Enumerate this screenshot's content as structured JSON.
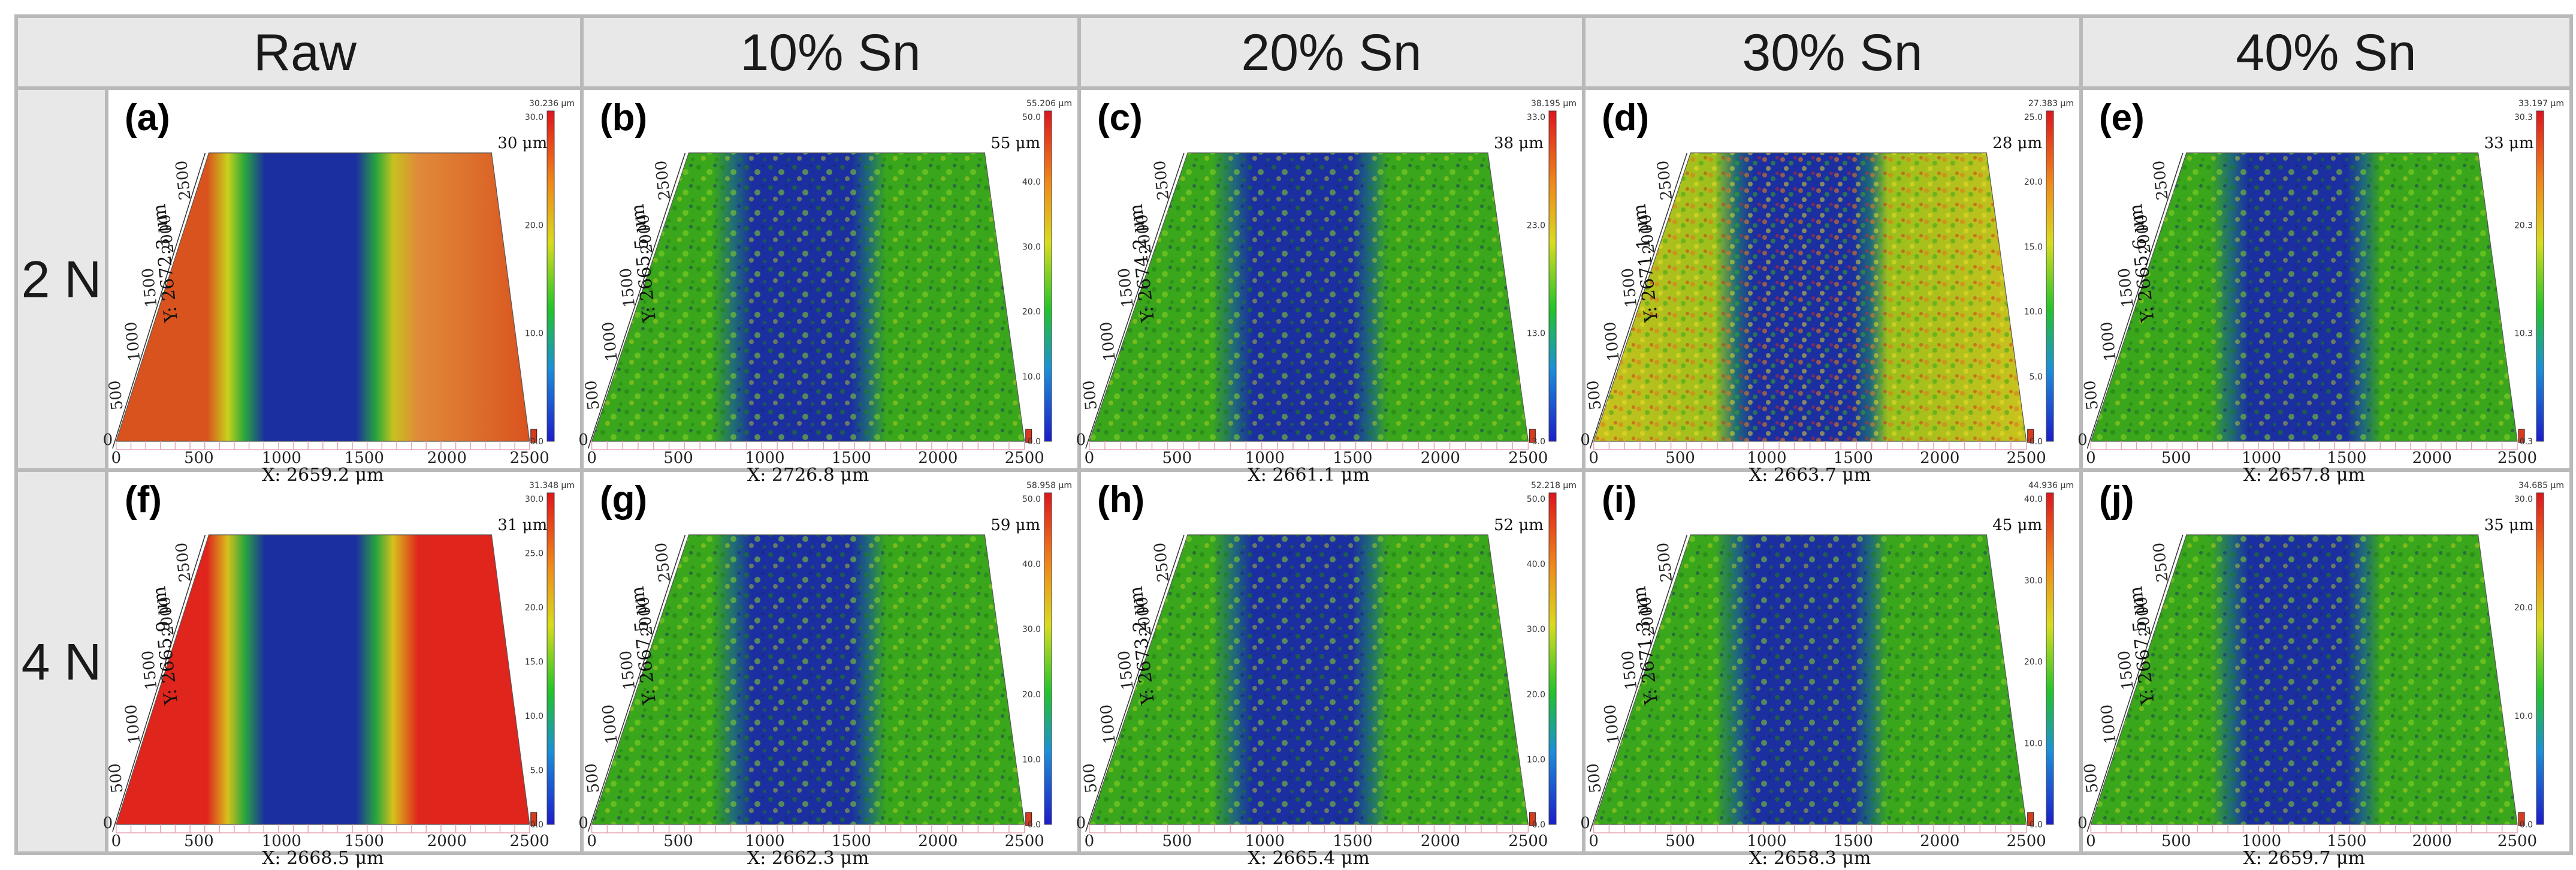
{
  "columns": [
    "Raw",
    "10% Sn",
    "20% Sn",
    "30% Sn",
    "40% Sn"
  ],
  "rows": [
    "2 N",
    "4 N"
  ],
  "panels": [
    {
      "label": "(a)",
      "depth": "30 μm",
      "x_length": "X: 2659.2 μm",
      "y_length": "Y: 2672.3 μm",
      "cb_max": "30.236 μm",
      "cb_ticks": [
        "30.0",
        "20.0",
        "10.0",
        "0.0"
      ],
      "style": "raw"
    },
    {
      "label": "(b)",
      "depth": "55 μm",
      "x_length": "X: 2726.8 μm",
      "y_length": "Y: 2665.5 μm",
      "cb_max": "55.206 μm",
      "cb_ticks": [
        "50.0",
        "40.0",
        "30.0",
        "20.0",
        "10.0",
        "0.0"
      ],
      "style": "rough"
    },
    {
      "label": "(c)",
      "depth": "38 μm",
      "x_length": "X: 2661.1 μm",
      "y_length": "Y: 2674.2 μm",
      "cb_max": "38.195 μm",
      "cb_ticks": [
        "33.0",
        "23.0",
        "13.0",
        "3.0"
      ],
      "style": "rough"
    },
    {
      "label": "(d)",
      "depth": "28 μm",
      "x_length": "X: 2663.7 μm",
      "y_length": "Y: 2671.1 μm",
      "cb_max": "27.383 μm",
      "cb_ticks": [
        "25.0",
        "20.0",
        "15.0",
        "10.0",
        "5.0",
        "0.0"
      ],
      "style": "rough_yellow"
    },
    {
      "label": "(e)",
      "depth": "33 μm",
      "x_length": "X: 2657.8 μm",
      "y_length": "Y: 2665.6 μm",
      "cb_max": "33.197 μm",
      "cb_ticks": [
        "30.3",
        "20.3",
        "10.3",
        "0.3"
      ],
      "style": "rough"
    },
    {
      "label": "(f)",
      "depth": "31 μm",
      "x_length": "X: 2668.5 μm",
      "y_length": "Y: 2665.9 μm",
      "cb_max": "31.348 μm",
      "cb_ticks": [
        "30.0",
        "25.0",
        "20.0",
        "15.0",
        "10.0",
        "5.0",
        "0.0"
      ],
      "style": "raw"
    },
    {
      "label": "(g)",
      "depth": "59 μm",
      "x_length": "X: 2662.3 μm",
      "y_length": "Y: 2667.5 μm",
      "cb_max": "58.958 μm",
      "cb_ticks": [
        "50.0",
        "40.0",
        "30.0",
        "20.0",
        "10.0",
        "0.0"
      ],
      "style": "rough"
    },
    {
      "label": "(h)",
      "depth": "52 μm",
      "x_length": "X: 2665.4 μm",
      "y_length": "Y: 2673.2 μm",
      "cb_max": "52.218 μm",
      "cb_ticks": [
        "50.0",
        "40.0",
        "30.0",
        "20.0",
        "10.0",
        "0.0"
      ],
      "style": "rough"
    },
    {
      "label": "(i)",
      "depth": "45 μm",
      "x_length": "X: 2658.3 μm",
      "y_length": "Y: 2671.3 μm",
      "cb_max": "44.936 μm",
      "cb_ticks": [
        "40.0",
        "30.0",
        "20.0",
        "10.0",
        "0.0"
      ],
      "style": "rough"
    },
    {
      "label": "(j)",
      "depth": "35 μm",
      "x_length": "X: 2659.7 μm",
      "y_length": "Y: 2667.5 μm",
      "cb_max": "34.685 μm",
      "cb_ticks": [
        "30.0",
        "20.0",
        "10.0",
        "0.0"
      ],
      "style": "rough"
    }
  ],
  "x_ticks": [
    "0",
    "500",
    "1000",
    "1500",
    "2000",
    "2500"
  ],
  "y_ticks": [
    "500",
    "1000",
    "1500",
    "2000",
    "2500"
  ],
  "colors": {
    "header_bg": "#e8e8e8",
    "border": "#b9b9b9",
    "raw_surface": "#d9531e",
    "raw_surface_4N": "#e0251c",
    "track_blue": "#1b2fa0",
    "rough_green": "#3aa61c",
    "rough_yellow": "#d8c21e"
  }
}
